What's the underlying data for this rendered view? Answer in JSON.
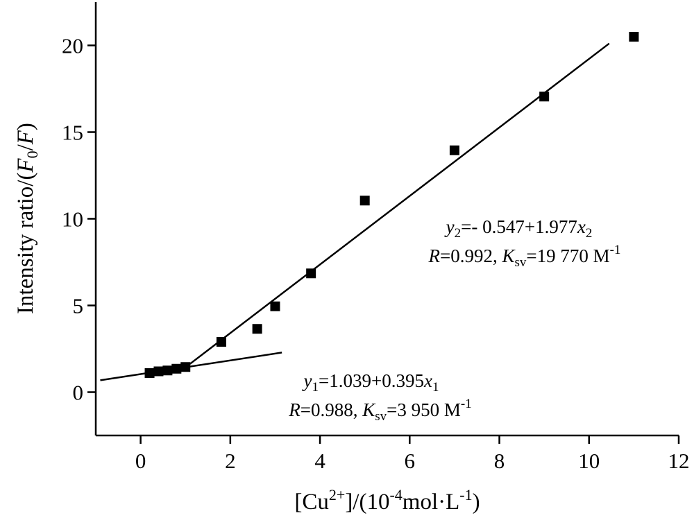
{
  "chart_data": {
    "type": "scatter",
    "xlim": [
      -1,
      12
    ],
    "ylim": [
      -2.5,
      22.5
    ],
    "x_ticks": [
      "0",
      "2",
      "4",
      "6",
      "8",
      "10",
      "12"
    ],
    "y_ticks": [
      "0",
      "5",
      "10",
      "15",
      "20"
    ],
    "grid": false,
    "xlabel": {
      "prefix": "[Cu",
      "sup1": "2+",
      "middle": "]/(10",
      "sup2": "-4",
      "unit": "mol·L",
      "sup3": "-1",
      "suffix": ")"
    },
    "ylabel": {
      "prefix": "Intensity ratio/(",
      "f0": "F",
      "f0_sub": "0",
      "slash": "/",
      "f": "F",
      "suffix": ")"
    },
    "points": [
      {
        "x": 0.2,
        "y": 1.1
      },
      {
        "x": 0.4,
        "y": 1.2
      },
      {
        "x": 0.6,
        "y": 1.25
      },
      {
        "x": 0.8,
        "y": 1.35
      },
      {
        "x": 1.0,
        "y": 1.45
      },
      {
        "x": 1.8,
        "y": 2.9
      },
      {
        "x": 2.6,
        "y": 3.65
      },
      {
        "x": 3.0,
        "y": 4.95
      },
      {
        "x": 3.8,
        "y": 6.85
      },
      {
        "x": 5.0,
        "y": 11.05
      },
      {
        "x": 7.0,
        "y": 13.95
      },
      {
        "x": 9.0,
        "y": 17.05
      },
      {
        "x": 11.0,
        "y": 20.5
      }
    ],
    "fit_lines": [
      {
        "intercept": 1.039,
        "slope": 0.395,
        "x_range": [
          -0.9,
          3.15
        ]
      },
      {
        "intercept": -0.547,
        "slope": 1.977,
        "x_range": [
          1.1,
          10.45
        ]
      }
    ],
    "annotations": {
      "eq2": {
        "var": "y",
        "sub": "2",
        "text": "=- 0.547+1.977",
        "var2": "x",
        "sub2": "2"
      },
      "stats2": {
        "r": "R",
        "r_text": "=0.992, ",
        "k": "K",
        "k_sub": "sv",
        "k_text": "=19 770 M",
        "k_sup": "-1"
      },
      "eq1": {
        "var": "y",
        "sub": "1",
        "text": "=1.039+0.395",
        "var2": "x",
        "sub2": "1"
      },
      "stats1": {
        "r": "R",
        "r_text": "=0.988, ",
        "k": "K",
        "k_sub": "sv",
        "k_text": "=3 950 M",
        "k_sup": "-1"
      }
    }
  }
}
